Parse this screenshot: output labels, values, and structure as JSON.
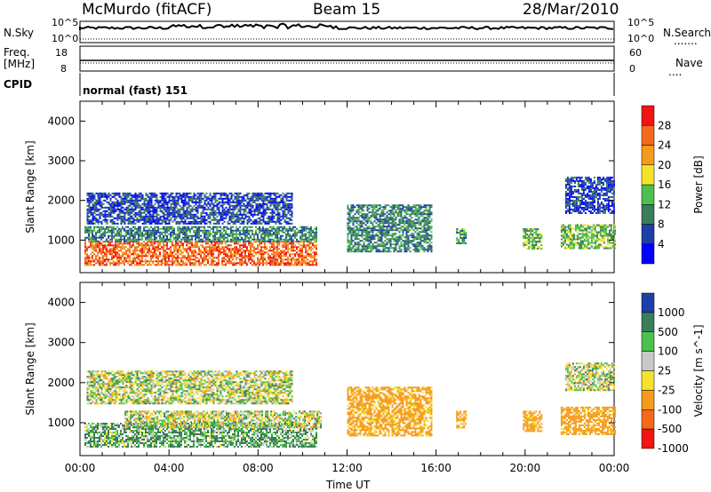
{
  "header": {
    "station": "McMurdo (fitACF)",
    "beam": "Beam 15",
    "date": "28/Mar/2010"
  },
  "strip_labels": {
    "nsky": "N.Sky",
    "nsky_top": "10^5",
    "nsky_bottom": "10^0",
    "nsearch": "N.Search",
    "nsearch_dots": ".......",
    "nsearch_top": "10^5",
    "nsearch_bottom": "10^0",
    "freq": "Freq.",
    "freq_unit": "[MHz]",
    "freq_top": "18",
    "freq_bottom": "8",
    "nave": "Nave",
    "nave_dots": "....",
    "nave_top": "60",
    "nave_bottom": "0",
    "cpid": "CPID",
    "cpid_value": "normal (fast) 151"
  },
  "chart_data": [
    {
      "type": "heatmap",
      "quantity": "Power",
      "ylabel": "Slant Range [km]",
      "y_ticks": [
        "1000",
        "2000",
        "3000",
        "4000"
      ],
      "ylim": [
        180,
        4500
      ],
      "colorbar_label": "Power [dB]",
      "colorbar_ticks": [
        "4",
        "8",
        "12",
        "16",
        "20",
        "24",
        "28"
      ],
      "colorbar_range": [
        0,
        32
      ],
      "colors": [
        "#0000ff",
        "#1f3fa8",
        "#3a7d5a",
        "#4cc04c",
        "#f5e32b",
        "#f59b1b",
        "#f36a1a",
        "#f01414"
      ],
      "regions": [
        {
          "t": [
            0.2,
            10.6
          ],
          "range": [
            380,
            980
          ],
          "value": 26
        },
        {
          "t": [
            0.2,
            10.6
          ],
          "range": [
            980,
            1350
          ],
          "value": 10
        },
        {
          "t": [
            0.3,
            9.5
          ],
          "range": [
            1400,
            2200
          ],
          "value": 6
        },
        {
          "t": [
            12.0,
            15.8
          ],
          "range": [
            700,
            1900
          ],
          "value": 10
        },
        {
          "t": [
            16.9,
            17.3
          ],
          "range": [
            900,
            1300
          ],
          "value": 12
        },
        {
          "t": [
            19.9,
            20.7
          ],
          "range": [
            800,
            1300
          ],
          "value": 14
        },
        {
          "t": [
            21.6,
            24.0
          ],
          "range": [
            800,
            1400
          ],
          "value": 14
        },
        {
          "t": [
            21.8,
            24.0
          ],
          "range": [
            1700,
            2600
          ],
          "value": 5
        }
      ]
    },
    {
      "type": "heatmap",
      "quantity": "Velocity",
      "ylabel": "Slant Range [km]",
      "y_ticks": [
        "1000",
        "2000",
        "3000",
        "4000"
      ],
      "ylim": [
        180,
        4500
      ],
      "colorbar_label": "Velocity [m s^-1]",
      "colorbar_ticks": [
        "1000",
        "500",
        "100",
        "25",
        "-25",
        "-100",
        "-500",
        "-1000"
      ],
      "colors": [
        "#1f3fa8",
        "#3a7d5a",
        "#4cc04c",
        "#c8c8c8",
        "#f5e32b",
        "#f59b1b",
        "#f36a1a",
        "#f01414"
      ],
      "regions": [
        {
          "t": [
            0.2,
            10.6
          ],
          "range": [
            380,
            1000
          ],
          "value": 100
        },
        {
          "t": [
            2.0,
            10.8
          ],
          "range": [
            900,
            1300
          ],
          "value": 0
        },
        {
          "t": [
            0.3,
            9.5
          ],
          "range": [
            1500,
            2300
          ],
          "value": 0
        },
        {
          "t": [
            12.0,
            15.8
          ],
          "range": [
            700,
            1900
          ],
          "value": -200
        },
        {
          "t": [
            16.9,
            17.3
          ],
          "range": [
            900,
            1300
          ],
          "value": -200
        },
        {
          "t": [
            19.9,
            20.7
          ],
          "range": [
            800,
            1300
          ],
          "value": -200
        },
        {
          "t": [
            21.6,
            24.0
          ],
          "range": [
            700,
            1400
          ],
          "value": -200
        },
        {
          "t": [
            21.8,
            24.0
          ],
          "range": [
            1800,
            2500
          ],
          "value": 0
        }
      ]
    }
  ],
  "x_axis": {
    "label": "Time UT",
    "ticks": [
      "00:00",
      "04:00",
      "08:00",
      "12:00",
      "16:00",
      "20:00",
      "00:00"
    ],
    "range_hours": [
      0,
      24
    ]
  }
}
